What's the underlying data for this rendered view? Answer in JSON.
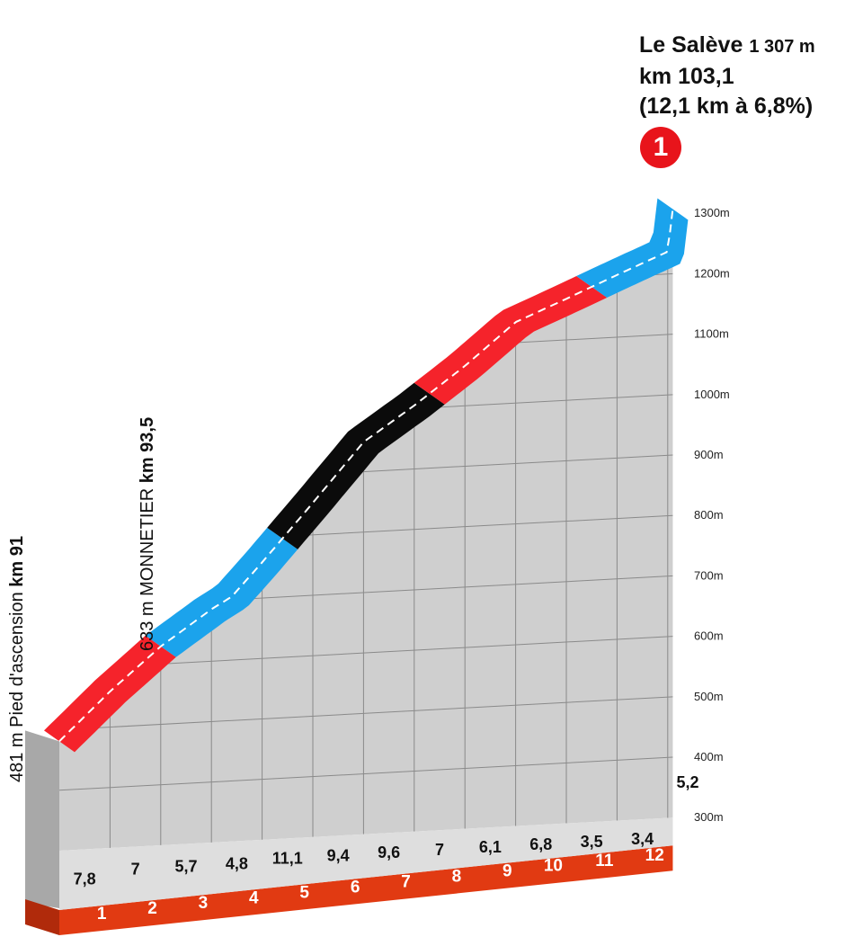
{
  "summit": {
    "name": "Le Salève",
    "altitude": "1 307 m",
    "km": "km 103,1",
    "stats": "(12,1 km à 6,8%)",
    "category_badge": "1",
    "badge_color": "#e8141b"
  },
  "waypoints": {
    "start": {
      "altitude": "481 m",
      "name": "Pied d'ascension",
      "km": "km 91"
    },
    "mid": {
      "altitude": "633 m",
      "name": "MONNETIER",
      "km": "km 93,5"
    }
  },
  "chart_data": {
    "type": "area",
    "title": "",
    "xlabel": "",
    "ylabel": "",
    "ylim": [
      300,
      1300
    ],
    "y_ticks": [
      "300m",
      "400m",
      "500m",
      "600m",
      "700m",
      "800m",
      "900m",
      "1000m",
      "1100m",
      "1200m",
      "1300m"
    ],
    "y_tick_values": [
      300,
      400,
      500,
      600,
      700,
      800,
      900,
      1000,
      1100,
      1200,
      1300
    ],
    "x_km_labels": [
      "1",
      "2",
      "3",
      "4",
      "5",
      "6",
      "7",
      "8",
      "9",
      "10",
      "11",
      "12"
    ],
    "gradients": [
      "7,8",
      "7",
      "5,7",
      "4,8",
      "11,1",
      "9,4",
      "9,6",
      "7",
      "6,1",
      "6,8",
      "3,5",
      "3,4",
      "5,2"
    ],
    "profile_km": [
      0,
      1,
      2,
      3,
      3.4,
      4,
      5,
      6,
      7,
      8,
      9,
      10,
      11,
      12,
      12.1
    ],
    "profile_alt": [
      481,
      559,
      629,
      686,
      705,
      759,
      853,
      949,
      1005,
      1066,
      1134,
      1168,
      1203,
      1237,
      1307
    ],
    "segments": [
      {
        "from_km": 0,
        "to_km": 2,
        "color": "#f5232b"
      },
      {
        "from_km": 2,
        "to_km": 4.4,
        "color": "#1ba3ec"
      },
      {
        "from_km": 4.4,
        "to_km": 7.3,
        "color": "#0b0b0b"
      },
      {
        "from_km": 7.3,
        "to_km": 10.5,
        "color": "#f5232b"
      },
      {
        "from_km": 10.5,
        "to_km": 12.1,
        "color": "#1ba3ec"
      }
    ],
    "colors": {
      "face": "#cfcfcf",
      "grid": "#8a8a8a",
      "base_band": "#e13a12",
      "base_band_dark": "#b02a0b",
      "left_side": "#a8a8a8",
      "base_face": "#dedede"
    }
  }
}
